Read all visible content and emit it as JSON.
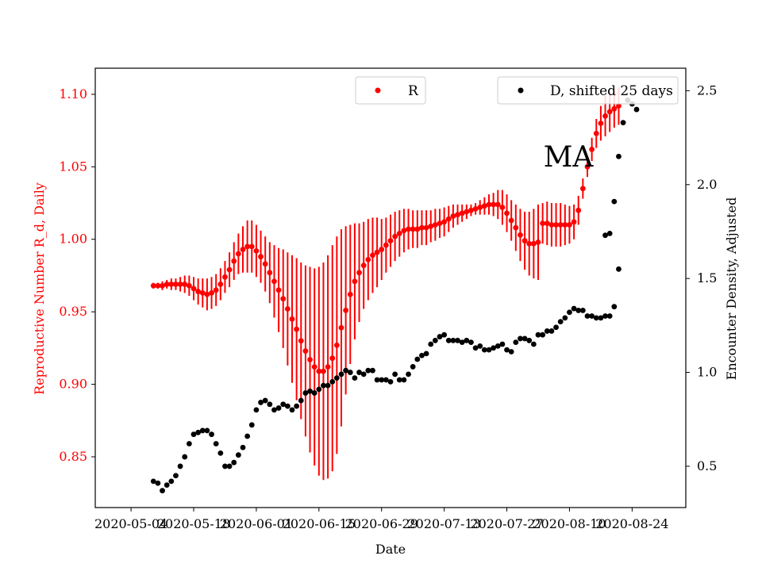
{
  "chart_data": {
    "type": "scatter",
    "annotation": "MA",
    "xlabel": "Date",
    "ylabel_left": "Reproductive Number R_d, Daily",
    "ylabel_right": "Encounter Density, Adjusted",
    "x_ticks": [
      "2020-05-04",
      "2020-05-18",
      "2020-06-01",
      "2020-06-15",
      "2020-06-29",
      "2020-07-13",
      "2020-07-27",
      "2020-08-10",
      "2020-08-24"
    ],
    "x_range": [
      "2020-04-26",
      "2020-09-05"
    ],
    "ylim_left": [
      0.815,
      1.118
    ],
    "yticks_left": [
      "0.85",
      "0.90",
      "0.95",
      "1.00",
      "1.05",
      "1.10"
    ],
    "ylim_right": [
      0.28,
      2.62
    ],
    "yticks_right": [
      "0.5",
      "1.0",
      "1.5",
      "2.0",
      "2.5"
    ],
    "colors": {
      "R": "#ff0000",
      "D": "#000000",
      "left_axis_text": "#ff0000"
    },
    "legend": [
      {
        "label": "R",
        "placement": "top-center"
      },
      {
        "label": "D, shifted 25 days",
        "placement": "top-right"
      }
    ],
    "series": [
      {
        "name": "R",
        "axis": "left",
        "start_date": "2020-05-09",
        "values": [
          0.968,
          0.968,
          0.968,
          0.969,
          0.969,
          0.969,
          0.969,
          0.969,
          0.968,
          0.966,
          0.964,
          0.963,
          0.962,
          0.963,
          0.965,
          0.969,
          0.974,
          0.979,
          0.985,
          0.99,
          0.993,
          0.995,
          0.995,
          0.992,
          0.988,
          0.983,
          0.977,
          0.971,
          0.965,
          0.959,
          0.952,
          0.945,
          0.938,
          0.93,
          0.923,
          0.917,
          0.912,
          0.909,
          0.909,
          0.912,
          0.918,
          0.927,
          0.939,
          0.951,
          0.962,
          0.971,
          0.977,
          0.982,
          0.986,
          0.989,
          0.991,
          0.993,
          0.996,
          0.999,
          1.002,
          1.004,
          1.006,
          1.007,
          1.007,
          1.007,
          1.008,
          1.008,
          1.009,
          1.01,
          1.011,
          1.012,
          1.014,
          1.016,
          1.017,
          1.018,
          1.019,
          1.02,
          1.021,
          1.022,
          1.023,
          1.024,
          1.024,
          1.024,
          1.022,
          1.018,
          1.013,
          1.008,
          1.003,
          0.999,
          0.997,
          0.997,
          0.998,
          1.011,
          1.011,
          1.01,
          1.01,
          1.01,
          1.01,
          1.01,
          1.012,
          1.02,
          1.035,
          1.05,
          1.062,
          1.073,
          1.08,
          1.085,
          1.088,
          1.09,
          1.092
        ],
        "errors": [
          0.002,
          0.002,
          0.003,
          0.003,
          0.004,
          0.004,
          0.005,
          0.006,
          0.007,
          0.008,
          0.009,
          0.01,
          0.011,
          0.011,
          0.011,
          0.011,
          0.011,
          0.012,
          0.013,
          0.014,
          0.016,
          0.018,
          0.018,
          0.018,
          0.018,
          0.019,
          0.021,
          0.025,
          0.029,
          0.034,
          0.039,
          0.044,
          0.049,
          0.054,
          0.059,
          0.064,
          0.068,
          0.072,
          0.075,
          0.077,
          0.078,
          0.075,
          0.068,
          0.058,
          0.048,
          0.04,
          0.034,
          0.03,
          0.028,
          0.026,
          0.024,
          0.021,
          0.019,
          0.018,
          0.017,
          0.016,
          0.015,
          0.014,
          0.013,
          0.013,
          0.012,
          0.012,
          0.011,
          0.011,
          0.01,
          0.01,
          0.009,
          0.008,
          0.007,
          0.006,
          0.005,
          0.004,
          0.004,
          0.005,
          0.006,
          0.007,
          0.008,
          0.01,
          0.012,
          0.013,
          0.014,
          0.016,
          0.018,
          0.02,
          0.022,
          0.024,
          0.026,
          0.014,
          0.015,
          0.015,
          0.015,
          0.015,
          0.014,
          0.013,
          0.012,
          0.01,
          0.007,
          0.007,
          0.008,
          0.01,
          0.012,
          0.014,
          0.014,
          0.013,
          0.013
        ]
      },
      {
        "name": "D, shifted 25 days",
        "axis": "right",
        "start_date": "2020-05-09",
        "values": [
          0.42,
          0.41,
          0.37,
          0.4,
          0.42,
          0.45,
          0.5,
          0.55,
          0.62,
          0.67,
          0.68,
          0.69,
          0.69,
          0.67,
          0.62,
          0.57,
          0.5,
          0.5,
          0.52,
          0.56,
          0.6,
          0.66,
          0.72,
          0.8,
          0.84,
          0.85,
          0.83,
          0.8,
          0.81,
          0.83,
          0.82,
          0.8,
          0.82,
          0.85,
          0.89,
          0.9,
          0.89,
          0.91,
          0.93,
          0.93,
          0.95,
          0.97,
          0.99,
          1.01,
          1.0,
          0.97,
          1.0,
          0.99,
          1.01,
          1.01,
          0.96,
          0.96,
          0.96,
          0.95,
          0.99,
          0.96,
          0.96,
          0.99,
          1.03,
          1.07,
          1.09,
          1.1,
          1.15,
          1.17,
          1.19,
          1.2,
          1.17,
          1.17,
          1.17,
          1.16,
          1.17,
          1.16,
          1.13,
          1.14,
          1.12,
          1.12,
          1.13,
          1.14,
          1.15,
          1.12,
          1.11,
          1.16,
          1.18,
          1.18,
          1.17,
          1.15,
          1.2,
          1.2,
          1.22,
          1.22,
          1.24,
          1.27,
          1.29,
          1.32,
          1.34,
          1.33,
          1.33,
          1.3,
          1.3,
          1.29,
          1.29,
          1.3,
          1.3,
          1.35,
          1.55
        ]
      },
      {
        "name": "D, shifted 25 days (late)",
        "axis": "right",
        "start_date": "2020-08-18",
        "values": [
          1.73,
          1.74,
          1.91,
          2.15,
          2.33,
          2.45,
          2.43,
          2.4
        ]
      }
    ]
  }
}
